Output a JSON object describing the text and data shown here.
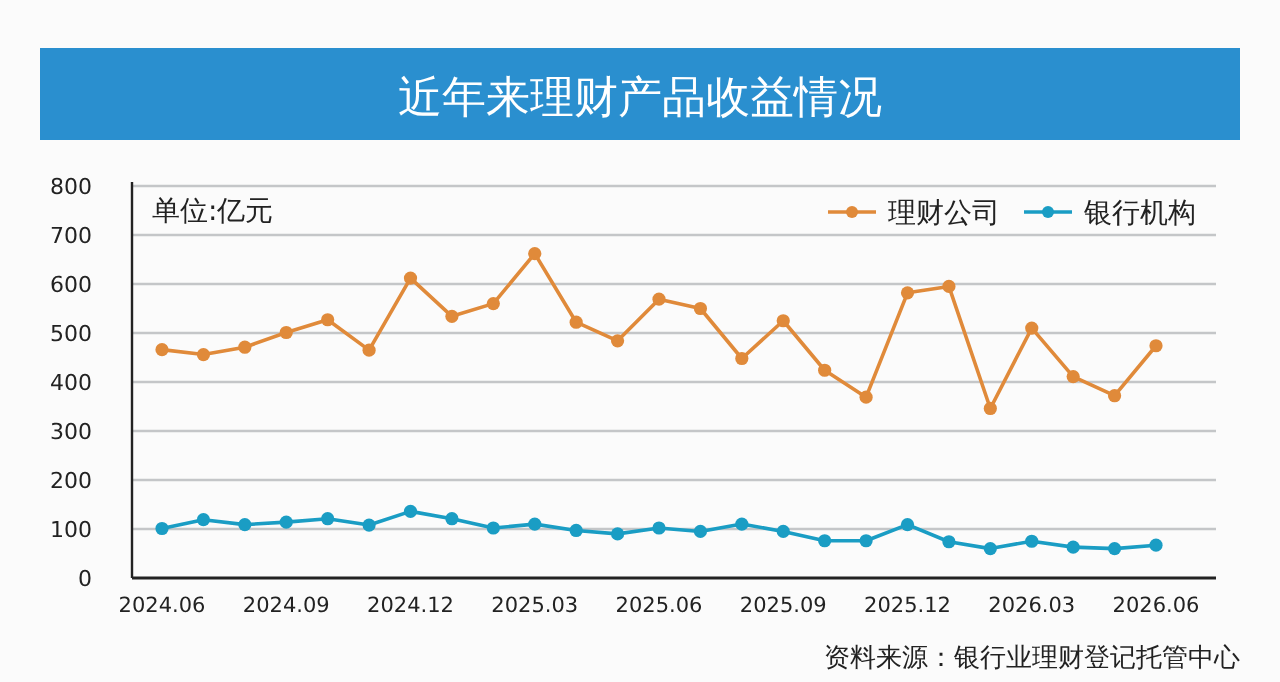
{
  "chart_data": {
    "type": "line",
    "title": "近年来理财产品收益情况",
    "annotations": [
      "单位:亿元",
      "资料来源：银行业理财登记托管中心"
    ],
    "categories": [
      "2024.06",
      null,
      null,
      "2024.09",
      null,
      null,
      "2024.12",
      null,
      null,
      "2025.03",
      null,
      null,
      "2025.06",
      null,
      null,
      "2025.09",
      null,
      null,
      "2025.12",
      null,
      null,
      "2026.03",
      null,
      null,
      "2026.06"
    ],
    "series": [
      {
        "name": "理财公司",
        "color": "#e08a3a",
        "values": [
          466,
          456,
          471,
          501,
          527,
          465,
          612,
          534,
          560,
          662,
          522,
          484,
          569,
          550,
          448,
          525,
          424,
          369,
          582,
          595,
          346,
          510,
          411,
          372,
          474
        ]
      },
      {
        "name": "银行机构",
        "color": "#1a9dc4",
        "values": [
          101,
          119,
          109,
          114,
          121,
          108,
          136,
          121,
          102,
          110,
          97,
          90,
          102,
          95,
          110,
          95,
          76,
          76,
          109,
          74,
          60,
          75,
          63,
          60,
          67
        ]
      }
    ],
    "ylim": [
      0,
      800
    ],
    "yticks": [
      0,
      100,
      200,
      300,
      400,
      500,
      600,
      700,
      800
    ],
    "grid": "y",
    "legend": "top right",
    "marker": "circle"
  }
}
